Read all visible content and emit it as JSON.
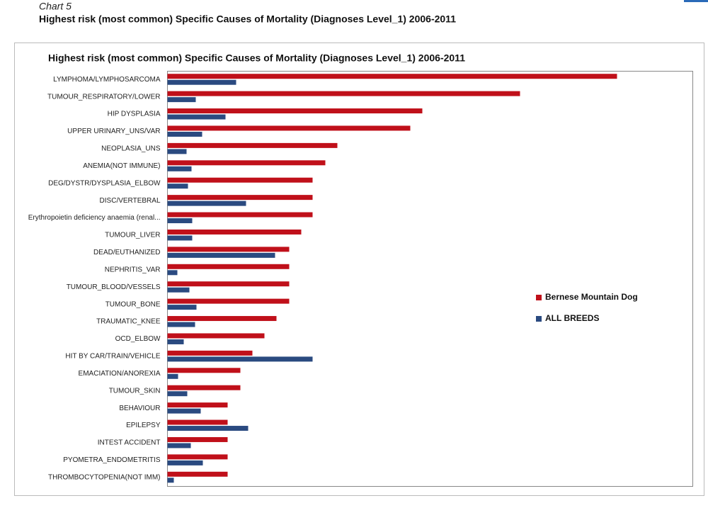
{
  "header": {
    "label": "Chart 5",
    "title": "Highest risk (most common) Specific Causes of Mortality (Diagnoses Level_1) 2006-2011"
  },
  "chart_data": {
    "type": "hbar",
    "title": "Highest risk (most common) Specific Causes of Mortality (Diagnoses Level_1) 2006-2011",
    "categories": [
      "LYMPHOMA/LYMPHOSARCOMA",
      "TUMOUR_RESPIRATORY/LOWER",
      "HIP DYSPLASIA",
      "UPPER URINARY_UNS/VAR",
      "NEOPLASIA_UNS",
      "ANEMIA(NOT IMMUNE)",
      "DEG/DYSTR/DYSPLASIA_ELBOW",
      "DISC/VERTEBRAL",
      "Erythropoietin deficiency anaemia (renal...",
      "TUMOUR_LIVER",
      "DEAD/EUTHANIZED",
      "NEPHRITIS_VAR",
      "TUMOUR_BLOOD/VESSELS",
      "TUMOUR_BONE",
      "TRAUMATIC_KNEE",
      "OCD_ELBOW",
      "HIT BY CAR/TRAIN/VEHICLE",
      "EMACIATION/ANOREXIA",
      "TUMOUR_SKIN",
      "BEHAVIOUR",
      "EPILEPSY",
      "INTEST ACCIDENT",
      "PYOMETRA_ENDOMETRITIS",
      "THROMBOCYTOPENIA(NOT IMM)"
    ],
    "series": [
      {
        "name": "Bernese Mountain Dog",
        "color": "#c0101a",
        "values": [
          635,
          498,
          360,
          343,
          240,
          223,
          205,
          205,
          205,
          189,
          172,
          172,
          172,
          172,
          154,
          137,
          120,
          103,
          103,
          85,
          85,
          85,
          85,
          85
        ]
      },
      {
        "name": "ALL BREEDS",
        "color": "#2a4a80",
        "values": [
          97,
          40,
          82,
          49,
          27,
          34,
          29,
          111,
          35,
          35,
          152,
          14,
          31,
          41,
          39,
          23,
          205,
          15,
          28,
          47,
          114,
          33,
          50,
          9
        ]
      }
    ],
    "xlim": [
      0,
      742
    ],
    "legend": "right"
  }
}
